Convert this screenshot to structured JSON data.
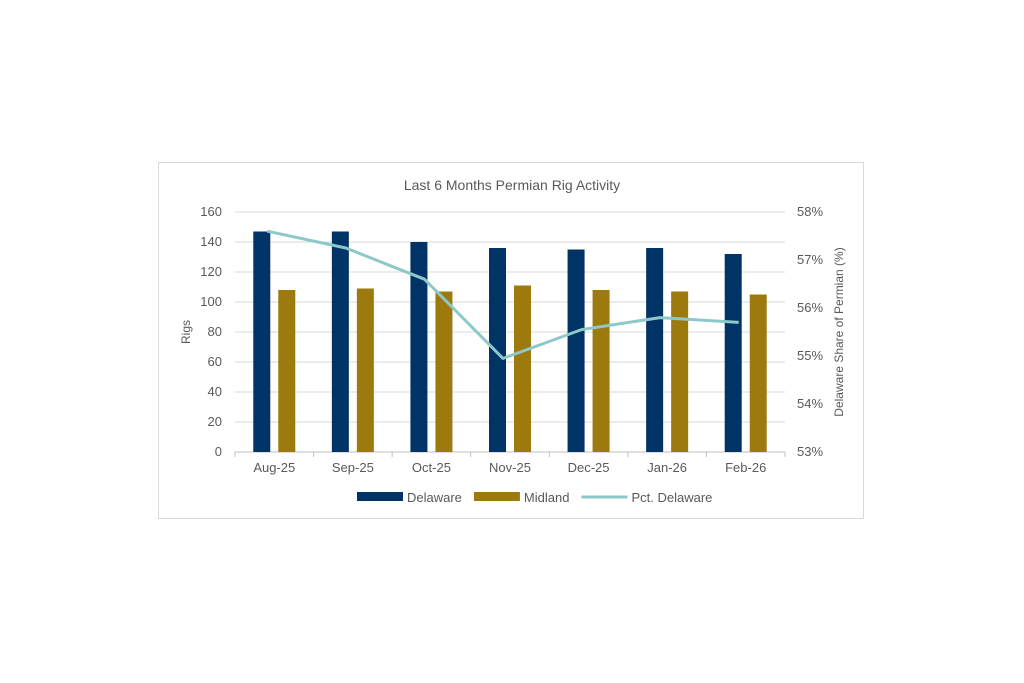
{
  "chart_data": {
    "type": "bar",
    "title": "Last 6 Months Permian Rig Activity",
    "categories": [
      "Aug-25",
      "Sep-25",
      "Oct-25",
      "Nov-25",
      "Dec-25",
      "Jan-26",
      "Feb-26"
    ],
    "ylabel": "Rigs",
    "y2label": "Delaware Share of Permian (%)",
    "ylim": [
      0,
      160
    ],
    "yticks": [
      0,
      20,
      40,
      60,
      80,
      100,
      120,
      140,
      160
    ],
    "y2lim": [
      53,
      58
    ],
    "y2ticks": [
      "53%",
      "54%",
      "55%",
      "56%",
      "57%",
      "58%"
    ],
    "grid": true,
    "legend_position": "bottom",
    "series": [
      {
        "name": "Delaware",
        "type": "bar",
        "axis": "left",
        "color": "#003366",
        "values": [
          147,
          147,
          140,
          136,
          135,
          136,
          132
        ]
      },
      {
        "name": "Midland",
        "type": "bar",
        "axis": "left",
        "color": "#9c7a0e",
        "values": [
          108,
          109,
          107,
          111,
          108,
          107,
          105
        ]
      },
      {
        "name": "Pct. Delaware",
        "type": "line",
        "axis": "right",
        "color": "#8ec8c8",
        "values": [
          57.6,
          57.25,
          56.6,
          54.95,
          55.55,
          55.8,
          55.7
        ]
      }
    ]
  }
}
